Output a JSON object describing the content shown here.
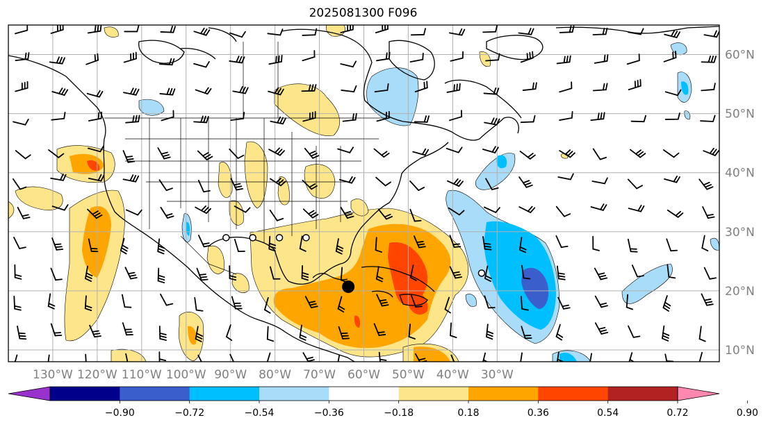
{
  "title": "2025081300 F096",
  "map": {
    "lon_range": [
      -140,
      20
    ],
    "lat_range": [
      8,
      65
    ],
    "lat_labels": [
      "60°N",
      "50°N",
      "40°N",
      "30°N",
      "20°N",
      "10°N"
    ],
    "lat_values": [
      60,
      50,
      40,
      30,
      20,
      10
    ],
    "lon_labels": [
      "130°W",
      "120°W",
      "110°W",
      "100°W",
      "90°W",
      "80°W",
      "70°W",
      "60°W",
      "50°W",
      "40°W",
      "30°W"
    ],
    "lon_values": [
      -130,
      -120,
      -110,
      -100,
      -90,
      -80,
      -70,
      -60,
      -50,
      -40,
      -30
    ],
    "gridlines": true,
    "colors": {
      "land_line": "#000000",
      "grid": "#b0b0b0",
      "pos_018": "#fde68a",
      "pos_036": "#ffa500",
      "pos_054": "#ff4500",
      "neg_018": "#a8dcf8",
      "neg_036": "#00bfff",
      "neg_054": "#3a5fcd"
    },
    "storm_markers": [
      {
        "type": "current",
        "lon": -63.5,
        "lat": 20.7
      },
      {
        "type": "track",
        "lon": -91,
        "lat": 29
      },
      {
        "type": "track",
        "lon": -85,
        "lat": 29
      },
      {
        "type": "track",
        "lon": -79,
        "lat": 29
      },
      {
        "type": "track",
        "lon": -73,
        "lat": 29
      },
      {
        "type": "track",
        "lon": -33.5,
        "lat": 23
      }
    ]
  },
  "colorbar": {
    "labels": [
      "−0.90",
      "−0.72",
      "−0.54",
      "−0.36",
      "−0.18",
      "0.18",
      "0.36",
      "0.54",
      "0.72",
      "0.90"
    ],
    "colors": [
      "#9932cc",
      "#00008b",
      "#3a5fcd",
      "#00bfff",
      "#a8dcf8",
      "#ffffff",
      "#fde68a",
      "#ffa500",
      "#ff4500",
      "#b22222",
      "#ff88b0"
    ]
  }
}
